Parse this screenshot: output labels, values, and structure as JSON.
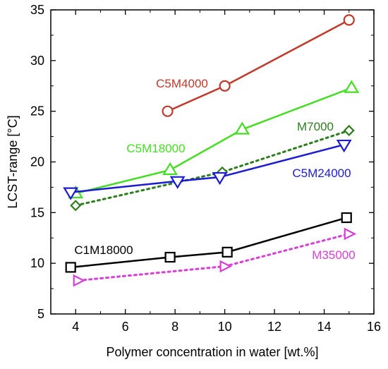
{
  "chart_data": {
    "type": "line",
    "xlabel": "Polymer concentration in water [wt.%]",
    "ylabel": "LCST-range [°C]",
    "xlim": [
      3,
      16
    ],
    "ylim": [
      5,
      35
    ],
    "xticks": [
      4,
      6,
      8,
      10,
      12,
      14,
      16
    ],
    "yticks": [
      5,
      10,
      15,
      20,
      25,
      30,
      35
    ],
    "grid": false,
    "series": [
      {
        "name": "C5M4000",
        "color": "#c0392b",
        "marker": "circle",
        "dash": "solid",
        "x": [
          7.7,
          10.0,
          15.0
        ],
        "y": [
          25.0,
          27.5,
          34.0
        ]
      },
      {
        "name": "C5M18000",
        "color": "#44dd22",
        "marker": "triangle-up",
        "dash": "solid",
        "x": [
          4.0,
          7.8,
          10.7,
          15.1
        ],
        "y": [
          16.9,
          19.2,
          23.2,
          27.3
        ]
      },
      {
        "name": "M7000",
        "color": "#2e7d1e",
        "marker": "diamond",
        "dash": "dotted",
        "x": [
          4.0,
          9.9,
          15.0
        ],
        "y": [
          15.7,
          19.0,
          23.1
        ]
      },
      {
        "name": "C5M24000",
        "color": "#1c1cd0",
        "marker": "triangle-down",
        "dash": "solid",
        "x": [
          3.8,
          8.1,
          9.8,
          14.8
        ],
        "y": [
          17.0,
          18.1,
          18.5,
          21.7
        ]
      },
      {
        "name": "C1M18000",
        "color": "#000000",
        "marker": "square",
        "dash": "solid",
        "x": [
          3.8,
          7.8,
          10.1,
          14.9
        ],
        "y": [
          9.6,
          10.6,
          11.1,
          14.5
        ]
      },
      {
        "name": "M35000",
        "color": "#d640d6",
        "marker": "triangle-right",
        "dash": "dotted",
        "x": [
          4.1,
          10.0,
          15.0
        ],
        "y": [
          8.3,
          9.7,
          12.9
        ]
      }
    ]
  }
}
